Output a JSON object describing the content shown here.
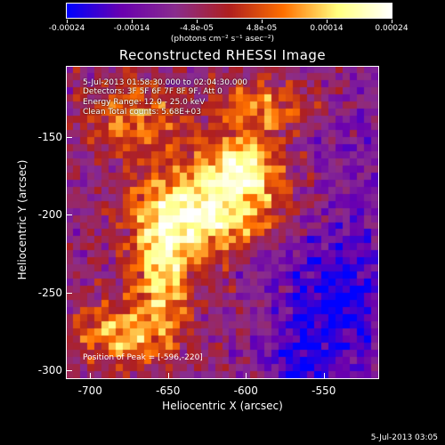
{
  "colorbar": {
    "ticks": [
      "-0.00024",
      "-0.00014",
      "-4.8e-05",
      "4.8e-05",
      "0.00014",
      "0.00024"
    ],
    "units": "(photons cm⁻² s⁻¹ asec⁻²)",
    "colors": [
      "#0000ff",
      "#6a00b0",
      "#8a2d8e",
      "#b02020",
      "#ff7000",
      "#ffff80",
      "#ffffff"
    ]
  },
  "plot": {
    "title": "Reconstructed RHESSI Image",
    "x_label": "Heliocentric X (arcsec)",
    "y_label": "Heliocentric Y (arcsec)",
    "x_ticks": [
      "-700",
      "-650",
      "-600",
      "-550"
    ],
    "y_ticks": [
      "-150",
      "-200",
      "-250",
      "-300"
    ],
    "x_range": [
      -715,
      -515
    ],
    "y_range": [
      -305,
      -105
    ]
  },
  "info": {
    "time_range": "5-Jul-2013 01:58:30.000 to 02:04:30.000",
    "detectors": "Detectors: 3F 5F 6F 7F 8F 9F, Att 0",
    "energy_range": "Energy Range: 12.0 - 25.0 keV",
    "clean": "Clean     Total counts: 5.68E+03",
    "peak": "Position of Peak = [-596,-220]"
  },
  "footer": {
    "timestamp": "5-Jul-2013 03:05"
  }
}
